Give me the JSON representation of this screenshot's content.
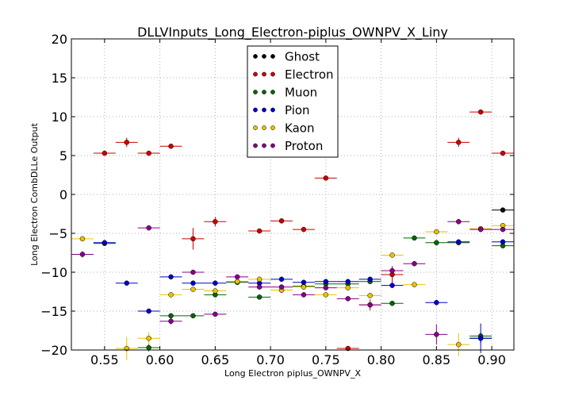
{
  "chart_data": {
    "type": "scatter",
    "title": "DLLVInputs_Long_Electron-piplus_OWNPV_X_Liny",
    "xlabel": "Long Electron piplus_OWNPV_X",
    "ylabel": "Long Electron CombDLLe Output",
    "xlim": [
      0.52,
      0.92
    ],
    "ylim": [
      -20,
      20
    ],
    "xticks": [
      0.55,
      0.6,
      0.65,
      0.7,
      0.75,
      0.8,
      0.85,
      0.9
    ],
    "xtick_labels": [
      "0.55",
      "0.60",
      "0.65",
      "0.70",
      "0.75",
      "0.80",
      "0.85",
      "0.90"
    ],
    "yticks": [
      -20,
      -15,
      -10,
      -5,
      0,
      5,
      10,
      15,
      20
    ],
    "ytick_labels": [
      "−20",
      "−15",
      "−10",
      "−5",
      "0",
      "5",
      "10",
      "15",
      "20"
    ],
    "grid": true,
    "legend_position": "top-center",
    "x_bin_halfwidth": 0.01,
    "series": [
      {
        "name": "Ghost",
        "color": "#000000",
        "points": [
          [
            0.91,
            -2.0
          ],
          [
            0.89,
            -18.5
          ]
        ],
        "yerr": [
          0,
          0.6
        ]
      },
      {
        "name": "Electron",
        "color": "#cc0000",
        "points": [
          [
            0.55,
            5.3
          ],
          [
            0.57,
            6.7
          ],
          [
            0.59,
            5.3
          ],
          [
            0.61,
            6.2
          ],
          [
            0.63,
            -5.7
          ],
          [
            0.65,
            -3.5
          ],
          [
            0.69,
            -4.7
          ],
          [
            0.71,
            -3.4
          ],
          [
            0.73,
            -4.5
          ],
          [
            0.75,
            2.1
          ],
          [
            0.77,
            -19.8
          ],
          [
            0.79,
            -14.2
          ],
          [
            0.81,
            -10.3
          ],
          [
            0.87,
            6.7
          ],
          [
            0.89,
            10.6
          ],
          [
            0.91,
            5.3
          ]
        ],
        "yerr": [
          0.2,
          0.6,
          0.2,
          0.2,
          1.4,
          0.6,
          0.2,
          0.2,
          0.2,
          0.2,
          0.2,
          0.7,
          1.1,
          0.6,
          0.2,
          0.2
        ]
      },
      {
        "name": "Muon",
        "color": "#006600",
        "points": [
          [
            0.55,
            -6.3
          ],
          [
            0.59,
            -19.7
          ],
          [
            0.61,
            -15.6
          ],
          [
            0.63,
            -15.6
          ],
          [
            0.65,
            -12.9
          ],
          [
            0.67,
            -11.3
          ],
          [
            0.69,
            -13.2
          ],
          [
            0.71,
            -12.3
          ],
          [
            0.73,
            -11.8
          ],
          [
            0.75,
            -11.5
          ],
          [
            0.77,
            -11.5
          ],
          [
            0.79,
            -11.2
          ],
          [
            0.81,
            -14.0
          ],
          [
            0.83,
            -5.6
          ],
          [
            0.85,
            -6.2
          ],
          [
            0.87,
            -6.2
          ],
          [
            0.89,
            -18.2
          ],
          [
            0.91,
            -6.6
          ]
        ],
        "yerr": [
          0.2,
          0.5,
          0.3,
          0.2,
          0.3,
          0.2,
          0.2,
          0.2,
          0.2,
          0.2,
          0.2,
          0.2,
          0.2,
          0.2,
          0.2,
          0.2,
          0.5,
          0.2
        ]
      },
      {
        "name": "Pion",
        "color": "#0000cc",
        "points": [
          [
            0.55,
            -6.2
          ],
          [
            0.57,
            -11.4
          ],
          [
            0.59,
            -15.0
          ],
          [
            0.61,
            -10.6
          ],
          [
            0.63,
            -11.4
          ],
          [
            0.65,
            -11.4
          ],
          [
            0.67,
            -11.2
          ],
          [
            0.69,
            -11.4
          ],
          [
            0.71,
            -10.9
          ],
          [
            0.73,
            -11.3
          ],
          [
            0.75,
            -11.2
          ],
          [
            0.77,
            -11.2
          ],
          [
            0.79,
            -10.9
          ],
          [
            0.81,
            -11.7
          ],
          [
            0.85,
            -13.9
          ],
          [
            0.87,
            -6.1
          ],
          [
            0.89,
            -18.5
          ],
          [
            0.91,
            -6.1
          ]
        ],
        "yerr": [
          0.2,
          0.2,
          0.2,
          0.2,
          0.2,
          0.2,
          0.2,
          0.2,
          0.2,
          0.2,
          0.2,
          0.2,
          0.2,
          0.2,
          0.2,
          0.2,
          1.9,
          0.2
        ]
      },
      {
        "name": "Kaon",
        "color": "#e6c200",
        "points": [
          [
            0.53,
            -5.7
          ],
          [
            0.57,
            -19.8
          ],
          [
            0.59,
            -18.5
          ],
          [
            0.61,
            -12.9
          ],
          [
            0.63,
            -12.2
          ],
          [
            0.65,
            -12.4
          ],
          [
            0.67,
            -11.2
          ],
          [
            0.69,
            -10.9
          ],
          [
            0.71,
            -12.3
          ],
          [
            0.73,
            -11.9
          ],
          [
            0.75,
            -12.9
          ],
          [
            0.77,
            -12.0
          ],
          [
            0.79,
            -13.0
          ],
          [
            0.81,
            -7.8
          ],
          [
            0.83,
            -11.6
          ],
          [
            0.85,
            -4.8
          ],
          [
            0.87,
            -19.3
          ],
          [
            0.89,
            -4.4
          ],
          [
            0.91,
            -4.0
          ]
        ],
        "yerr": [
          0.2,
          1.5,
          0.8,
          0.2,
          0.2,
          0.2,
          0.2,
          0.2,
          0.2,
          0.2,
          0.2,
          0.2,
          0.2,
          0.2,
          0.2,
          0.2,
          1.5,
          0.2,
          0.2
        ]
      },
      {
        "name": "Proton",
        "color": "#880088",
        "points": [
          [
            0.53,
            -7.7
          ],
          [
            0.59,
            -4.3
          ],
          [
            0.61,
            -16.3
          ],
          [
            0.63,
            -10.0
          ],
          [
            0.65,
            -15.4
          ],
          [
            0.67,
            -10.6
          ],
          [
            0.69,
            -11.9
          ],
          [
            0.71,
            -11.9
          ],
          [
            0.73,
            -12.9
          ],
          [
            0.75,
            -12.0
          ],
          [
            0.77,
            -13.4
          ],
          [
            0.79,
            -14.2
          ],
          [
            0.81,
            -9.8
          ],
          [
            0.83,
            -8.9
          ],
          [
            0.85,
            -18.0
          ],
          [
            0.87,
            -3.5
          ],
          [
            0.89,
            -4.5
          ],
          [
            0.91,
            -4.5
          ]
        ],
        "yerr": [
          0.4,
          0.2,
          0.4,
          0.2,
          0.2,
          0.2,
          0.2,
          0.2,
          0.2,
          0.2,
          0.2,
          0.2,
          0.2,
          0.2,
          1.3,
          0.2,
          0.2,
          0.2
        ]
      }
    ]
  }
}
